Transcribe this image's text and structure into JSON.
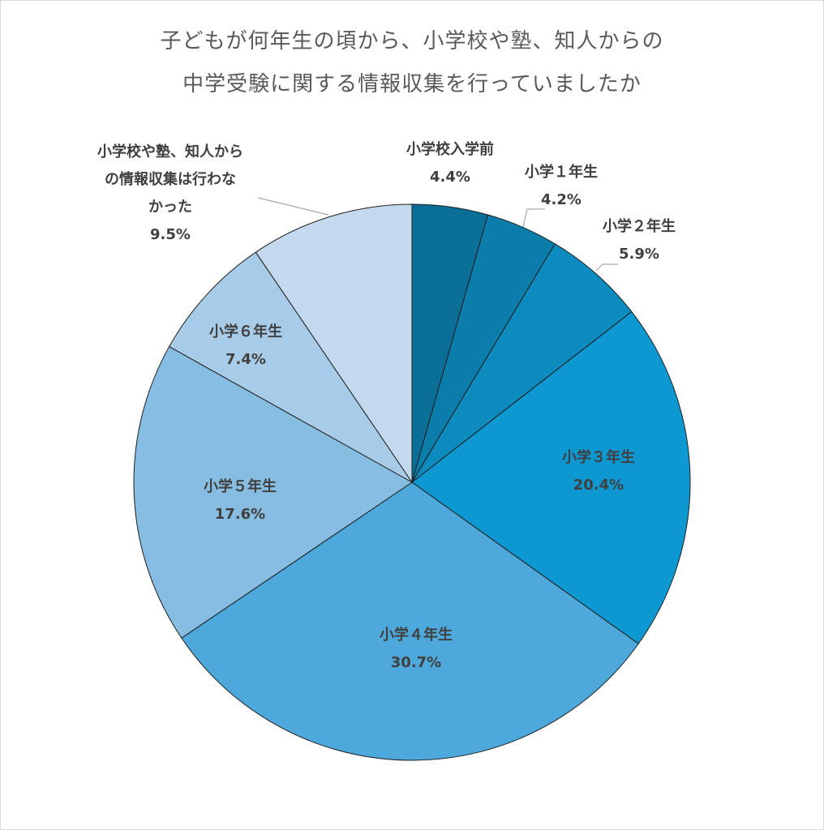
{
  "title_lines": [
    "子どもが何年生の頃から、小学校や塾、知人からの",
    "中学受験に関する情報収集を行っていましたか"
  ],
  "chart_data": {
    "type": "pie",
    "title": "子どもが何年生の頃から、小学校や塾、知人からの中学受験に関する情報収集を行っていましたか",
    "start_angle": "12 o'clock",
    "direction": "clockwise",
    "slices": [
      {
        "label": "小学校入学前",
        "value": 4.4,
        "value_label": "4.4%",
        "color": "#0A6E96"
      },
      {
        "label": "小学１年生",
        "value": 4.2,
        "value_label": "4.2%",
        "color": "#0B7DAA"
      },
      {
        "label": "小学２年生",
        "value": 5.9,
        "value_label": "5.9%",
        "color": "#0C8BBE"
      },
      {
        "label": "小学３年生",
        "value": 20.4,
        "value_label": "20.4%",
        "color": "#0E98D2"
      },
      {
        "label": "小学４年生",
        "value": 30.7,
        "value_label": "30.7%",
        "color": "#4DA9DB"
      },
      {
        "label": "小学５年生",
        "value": 17.6,
        "value_label": "17.6%",
        "color": "#87BDE1"
      },
      {
        "label": "小学６年生",
        "value": 7.4,
        "value_label": "7.4%",
        "color": "#A8CCE7"
      },
      {
        "label_lines": [
          "小学校や塾、知人から",
          "の情報収集は行わな",
          "かった"
        ],
        "label": "小学校や塾、知人からの情報収集は行わなかった",
        "value": 9.5,
        "value_label": "9.5%",
        "color": "#C3DAEE"
      }
    ]
  }
}
